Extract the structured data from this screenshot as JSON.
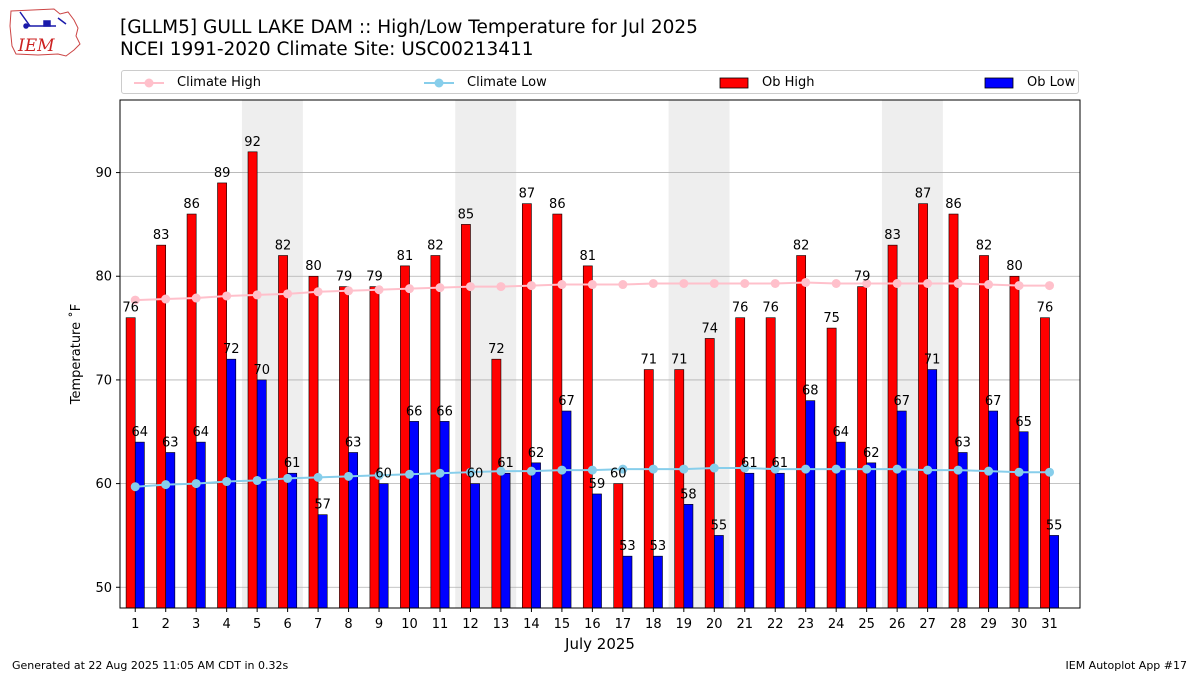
{
  "title_line1": "[GLLM5] GULL LAKE DAM :: High/Low Temperature for Jul 2025",
  "title_line2": "NCEI 1991-2020 Climate Site: USC00213411",
  "logo_text": "IEM",
  "footer_left": "Generated at 22 Aug 2025 11:05 AM CDT in 0.32s",
  "footer_right": "IEM Autoplot App #17",
  "legend": {
    "climate_high": "Climate High",
    "climate_low": "Climate Low",
    "ob_high": "Ob High",
    "ob_low": "Ob Low"
  },
  "colors": {
    "ob_high": "#ff0000",
    "ob_low": "#0000ff",
    "climate_high": "#ffc0cb",
    "climate_low": "#87ceeb",
    "weekend": "#eeeeee",
    "grid": "#b0b0b0"
  },
  "chart_data": {
    "type": "bar",
    "title": "[GLLM5] GULL LAKE DAM :: High/Low Temperature for Jul 2025",
    "xlabel": "July 2025",
    "ylabel": "Temperature ˚F",
    "ylim": [
      48,
      97
    ],
    "yticks": [
      50,
      60,
      70,
      80,
      90
    ],
    "grid": true,
    "legend_position": "top",
    "categories": [
      "1",
      "2",
      "3",
      "4",
      "5",
      "6",
      "7",
      "8",
      "9",
      "10",
      "11",
      "12",
      "13",
      "14",
      "15",
      "16",
      "17",
      "18",
      "19",
      "20",
      "21",
      "22",
      "23",
      "24",
      "25",
      "26",
      "27",
      "28",
      "29",
      "30",
      "31"
    ],
    "weekend_shading": [
      [
        5,
        6
      ],
      [
        12,
        13
      ],
      [
        19,
        20
      ],
      [
        26,
        27
      ]
    ],
    "series": [
      {
        "name": "Ob High",
        "kind": "bar",
        "values": [
          76,
          83,
          86,
          89,
          92,
          82,
          80,
          79,
          79,
          81,
          82,
          85,
          72,
          87,
          86,
          81,
          60,
          71,
          71,
          74,
          76,
          76,
          82,
          75,
          79,
          83,
          87,
          86,
          82,
          80,
          76
        ]
      },
      {
        "name": "Ob Low",
        "kind": "bar",
        "values": [
          64,
          63,
          64,
          72,
          70,
          61,
          57,
          63,
          60,
          66,
          66,
          60,
          61,
          62,
          67,
          59,
          53,
          53,
          58,
          55,
          61,
          61,
          68,
          64,
          62,
          67,
          71,
          63,
          67,
          65,
          55
        ]
      },
      {
        "name": "Climate High",
        "kind": "line",
        "values": [
          77.7,
          77.8,
          77.9,
          78.1,
          78.2,
          78.3,
          78.5,
          78.6,
          78.7,
          78.8,
          78.9,
          79.0,
          79.0,
          79.1,
          79.2,
          79.2,
          79.2,
          79.3,
          79.3,
          79.3,
          79.3,
          79.3,
          79.4,
          79.3,
          79.3,
          79.3,
          79.3,
          79.3,
          79.2,
          79.1,
          79.1
        ]
      },
      {
        "name": "Climate Low",
        "kind": "line",
        "values": [
          59.7,
          59.9,
          60.0,
          60.2,
          60.3,
          60.5,
          60.6,
          60.7,
          60.8,
          60.9,
          61.0,
          61.1,
          61.2,
          61.2,
          61.3,
          61.3,
          61.4,
          61.4,
          61.4,
          61.5,
          61.5,
          61.4,
          61.4,
          61.4,
          61.4,
          61.4,
          61.3,
          61.3,
          61.2,
          61.1,
          61.1
        ]
      }
    ]
  }
}
